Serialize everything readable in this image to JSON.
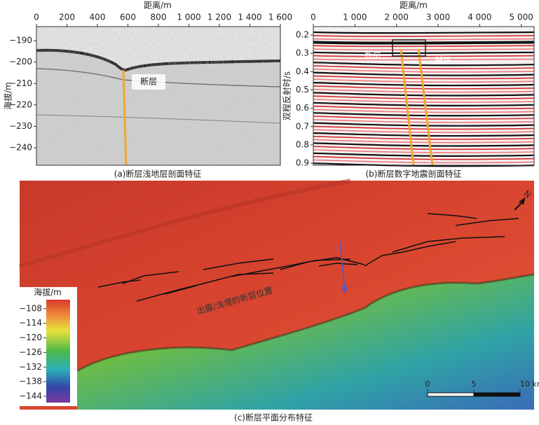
{
  "panels": [
    {
      "caption": "(a)断层浅地层剖面特征",
      "xlabel": "距离/m",
      "ylabel": "海拔/m",
      "xlim": [
        0,
        1600
      ],
      "xticks": [
        0,
        200,
        400,
        600,
        800,
        {
          "value": 1000,
          "label": "1 000"
        },
        {
          "value": 1200,
          "label": "1 200"
        },
        {
          "value": 1400,
          "label": "1 400"
        },
        {
          "value": 1600,
          "label": "1 600"
        }
      ],
      "ylim": [
        -183.4,
        -248.2
      ],
      "yticks": [
        {
          "value": -190,
          "label": "−190"
        },
        {
          "value": -200,
          "label": "−200"
        },
        {
          "value": -210,
          "label": "−210"
        },
        {
          "value": -220,
          "label": "−220"
        },
        {
          "value": -230,
          "label": "−230"
        },
        {
          "value": -240,
          "label": "−240"
        }
      ],
      "annotations": [
        "断层"
      ]
    },
    {
      "caption": "(b)断层数字地震剖面特征",
      "xlabel": "距离/m",
      "ylabel": "双程反射时/s",
      "xlim": [
        0,
        5308
      ],
      "xticks": [
        0,
        {
          "value": 1000,
          "label": "1 000"
        },
        {
          "value": 2000,
          "label": "2 000"
        },
        {
          "value": 3000,
          "label": "3 000"
        },
        {
          "value": 4000,
          "label": "4 000"
        },
        {
          "value": 5000,
          "label": "5 000"
        }
      ],
      "ylim": [
        0.154,
        0.911
      ],
      "yticks": [
        0.2,
        0.3,
        0.4,
        0.5,
        0.6,
        0.7,
        0.8,
        0.9
      ],
      "annotations": [
        "断层",
        "断层"
      ]
    },
    {
      "caption": "(c)断层平面分布特征",
      "annotation": "出露/浅埋的断层位置",
      "north": "N",
      "legend": {
        "title": "海拔/m",
        "lim": [
          -104.3,
          -146.6
        ],
        "ticks": [
          {
            "value": -108,
            "label": "−108"
          },
          {
            "value": -114,
            "label": "−114"
          },
          {
            "value": -120,
            "label": "−120"
          },
          {
            "value": -126,
            "label": "−126"
          },
          {
            "value": -132,
            "label": "−132"
          },
          {
            "value": -138,
            "label": "−138"
          },
          {
            "value": -144,
            "label": "−144"
          }
        ]
      },
      "scale": {
        "lim": [
          0,
          10
        ],
        "ticks": [
          0,
          5,
          {
            "value": 10,
            "label": "10 km"
          }
        ]
      }
    }
  ]
}
